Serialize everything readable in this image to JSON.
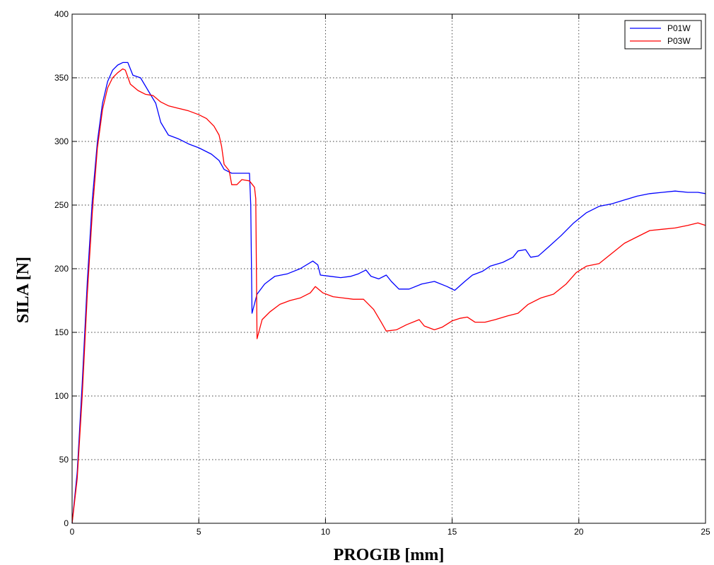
{
  "chart_data": {
    "type": "line",
    "xlabel": "PROGIB [mm]",
    "ylabel": "SILA [N]",
    "xlim": [
      0,
      25
    ],
    "ylim": [
      0,
      400
    ],
    "xticks": [
      0,
      5,
      10,
      15,
      20,
      25
    ],
    "yticks": [
      0,
      50,
      100,
      150,
      200,
      250,
      300,
      350,
      400
    ],
    "x_tick_labels": [
      "0",
      "5",
      "10",
      "15",
      "20",
      "25"
    ],
    "y_tick_labels": [
      "0",
      "50",
      "100",
      "150",
      "200",
      "250",
      "300",
      "350",
      "400"
    ],
    "grid": true,
    "legend_position": "top-right",
    "series": [
      {
        "name": "P01W",
        "color": "#0000ff",
        "points": [
          [
            0,
            0
          ],
          [
            0.2,
            40
          ],
          [
            0.4,
            110
          ],
          [
            0.6,
            190
          ],
          [
            0.8,
            255
          ],
          [
            1.0,
            300
          ],
          [
            1.2,
            330
          ],
          [
            1.4,
            347
          ],
          [
            1.6,
            356
          ],
          [
            1.8,
            360
          ],
          [
            2.0,
            362
          ],
          [
            2.2,
            362
          ],
          [
            2.4,
            352
          ],
          [
            2.7,
            350
          ],
          [
            3.0,
            340
          ],
          [
            3.3,
            330
          ],
          [
            3.5,
            315
          ],
          [
            3.8,
            305
          ],
          [
            4.2,
            302
          ],
          [
            4.6,
            298
          ],
          [
            5.0,
            295
          ],
          [
            5.5,
            290
          ],
          [
            5.8,
            285
          ],
          [
            6.0,
            278
          ],
          [
            6.3,
            275
          ],
          [
            7.0,
            275
          ],
          [
            7.05,
            250
          ],
          [
            7.1,
            165
          ],
          [
            7.3,
            180
          ],
          [
            7.6,
            188
          ],
          [
            8.0,
            194
          ],
          [
            8.5,
            196
          ],
          [
            9.0,
            200
          ],
          [
            9.5,
            206
          ],
          [
            9.7,
            203
          ],
          [
            9.8,
            195
          ],
          [
            10.2,
            194
          ],
          [
            10.6,
            193
          ],
          [
            11.0,
            194
          ],
          [
            11.3,
            196
          ],
          [
            11.6,
            199
          ],
          [
            11.8,
            194
          ],
          [
            12.1,
            192
          ],
          [
            12.4,
            195
          ],
          [
            12.6,
            190
          ],
          [
            12.9,
            184
          ],
          [
            13.3,
            184
          ],
          [
            13.8,
            188
          ],
          [
            14.3,
            190
          ],
          [
            14.8,
            186
          ],
          [
            15.1,
            183
          ],
          [
            15.5,
            190
          ],
          [
            15.8,
            195
          ],
          [
            16.2,
            198
          ],
          [
            16.5,
            202
          ],
          [
            17.0,
            205
          ],
          [
            17.4,
            209
          ],
          [
            17.6,
            214
          ],
          [
            17.9,
            215
          ],
          [
            18.1,
            209
          ],
          [
            18.4,
            210
          ],
          [
            18.8,
            217
          ],
          [
            19.3,
            226
          ],
          [
            19.8,
            236
          ],
          [
            20.3,
            244
          ],
          [
            20.8,
            249
          ],
          [
            21.3,
            251
          ],
          [
            21.8,
            254
          ],
          [
            22.3,
            257
          ],
          [
            22.8,
            259
          ],
          [
            23.3,
            260
          ],
          [
            23.8,
            261
          ],
          [
            24.3,
            260
          ],
          [
            24.7,
            260
          ],
          [
            25.0,
            259
          ]
        ]
      },
      {
        "name": "P03W",
        "color": "#ff0000",
        "points": [
          [
            0,
            0
          ],
          [
            0.2,
            35
          ],
          [
            0.4,
            100
          ],
          [
            0.6,
            180
          ],
          [
            0.8,
            245
          ],
          [
            1.0,
            295
          ],
          [
            1.2,
            325
          ],
          [
            1.4,
            342
          ],
          [
            1.6,
            350
          ],
          [
            1.8,
            354
          ],
          [
            2.0,
            357
          ],
          [
            2.1,
            356
          ],
          [
            2.3,
            345
          ],
          [
            2.6,
            340
          ],
          [
            2.9,
            337
          ],
          [
            3.2,
            336
          ],
          [
            3.5,
            331
          ],
          [
            3.8,
            328
          ],
          [
            4.2,
            326
          ],
          [
            4.6,
            324
          ],
          [
            5.0,
            321
          ],
          [
            5.3,
            318
          ],
          [
            5.6,
            312
          ],
          [
            5.8,
            305
          ],
          [
            5.9,
            296
          ],
          [
            6.0,
            282
          ],
          [
            6.2,
            277
          ],
          [
            6.3,
            266
          ],
          [
            6.5,
            266
          ],
          [
            6.7,
            270
          ],
          [
            7.0,
            269
          ],
          [
            7.2,
            264
          ],
          [
            7.25,
            255
          ],
          [
            7.3,
            145
          ],
          [
            7.5,
            160
          ],
          [
            7.8,
            166
          ],
          [
            8.2,
            172
          ],
          [
            8.6,
            175
          ],
          [
            9.0,
            177
          ],
          [
            9.4,
            181
          ],
          [
            9.6,
            186
          ],
          [
            9.9,
            181
          ],
          [
            10.3,
            178
          ],
          [
            10.7,
            177
          ],
          [
            11.1,
            176
          ],
          [
            11.5,
            176
          ],
          [
            11.9,
            168
          ],
          [
            12.2,
            158
          ],
          [
            12.4,
            151
          ],
          [
            12.8,
            152
          ],
          [
            13.2,
            156
          ],
          [
            13.7,
            160
          ],
          [
            13.9,
            155
          ],
          [
            14.3,
            152
          ],
          [
            14.6,
            154
          ],
          [
            15.0,
            159
          ],
          [
            15.3,
            161
          ],
          [
            15.6,
            162
          ],
          [
            15.9,
            158
          ],
          [
            16.3,
            158
          ],
          [
            16.7,
            160
          ],
          [
            17.2,
            163
          ],
          [
            17.6,
            165
          ],
          [
            18.0,
            172
          ],
          [
            18.5,
            177
          ],
          [
            19.0,
            180
          ],
          [
            19.5,
            188
          ],
          [
            19.9,
            197
          ],
          [
            20.3,
            202
          ],
          [
            20.8,
            204
          ],
          [
            21.3,
            212
          ],
          [
            21.8,
            220
          ],
          [
            22.3,
            225
          ],
          [
            22.8,
            230
          ],
          [
            23.3,
            231
          ],
          [
            23.8,
            232
          ],
          [
            24.3,
            234
          ],
          [
            24.7,
            236
          ],
          [
            25.0,
            234
          ]
        ]
      }
    ]
  }
}
